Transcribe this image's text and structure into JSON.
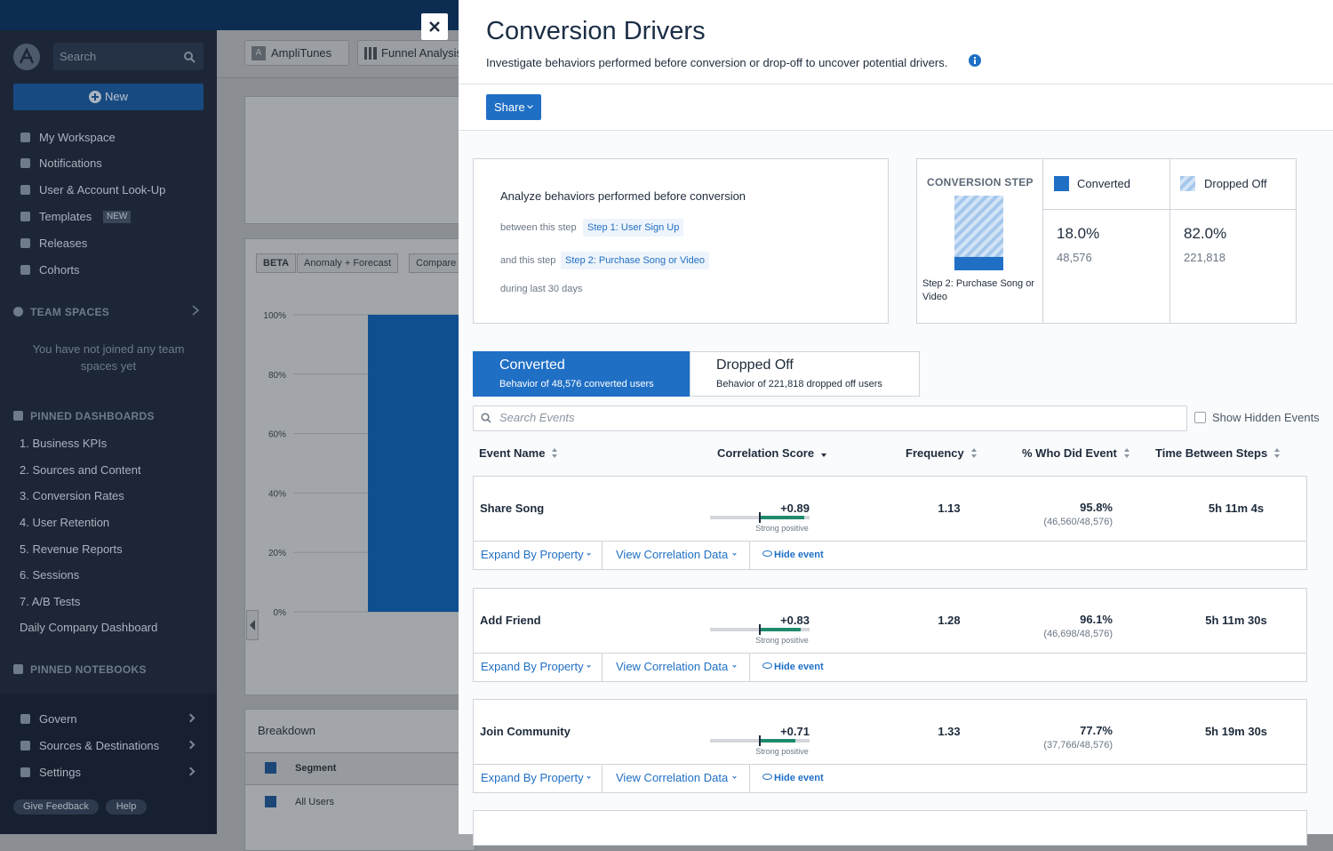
{
  "sidebar": {
    "search_placeholder": "Search",
    "new_button": "New",
    "nav": [
      "My Workspace",
      "Notifications",
      "User & Account Look-Up",
      "Templates",
      "Releases",
      "Cohorts"
    ],
    "templates_badge": "NEW",
    "team_spaces": {
      "heading": "TEAM SPACES",
      "empty_message": "You have not joined any team spaces yet"
    },
    "pinned_dashboards": {
      "heading": "PINNED DASHBOARDS",
      "items": [
        "1. Business KPIs",
        "2. Sources and Content",
        "3. Conversion Rates",
        "4. User Retention",
        "5. Revenue Reports",
        "6. Sessions",
        "7. A/B Tests",
        "Daily Company Dashboard"
      ]
    },
    "pinned_notebooks": {
      "heading": "PINNED NOTEBOOKS"
    },
    "bottom_nav": [
      "Govern",
      "Sources & Destinations",
      "Settings"
    ],
    "give_feedback": "Give Feedback",
    "help": "Help"
  },
  "background": {
    "project": "AmpliTunes",
    "chart_type": "Funnel Analysis",
    "beta": "BETA",
    "anomaly": "Anomaly + Forecast",
    "compare": "Compare",
    "chart": {
      "type": "bar",
      "values": [
        100
      ],
      "ylim": [
        0,
        100
      ],
      "yticks": [
        {
          "value": 0,
          "label": "0%"
        },
        {
          "value": 20,
          "label": "20%"
        },
        {
          "value": 40,
          "label": "40%"
        },
        {
          "value": 60,
          "label": "60%"
        },
        {
          "value": 80,
          "label": "80%"
        },
        {
          "value": 100,
          "label": "100%"
        }
      ]
    },
    "breakdown": {
      "title": "Breakdown",
      "column": "Segment",
      "row": "All Users"
    }
  },
  "panel": {
    "title": "Conversion Drivers",
    "subtitle": "Investigate behaviors performed before conversion or drop-off to uncover potential drivers.",
    "share": "Share",
    "analyze": {
      "heading": "Analyze behaviors performed before conversion",
      "between_label": "between this step",
      "from_step": "Step 1: User Sign Up",
      "and_label": "and this step",
      "to_step": "Step 2: Purchase Song or Video",
      "period": "during last 30 days"
    },
    "conversion": {
      "heading": "CONVERSION STEP",
      "step": "Step 2: Purchase Song or Video",
      "converted": {
        "label": "Converted",
        "rate": {
          "value": 18.0,
          "label": "18.0%"
        },
        "count": "48,576"
      },
      "dropped_off": {
        "label": "Dropped Off",
        "rate": {
          "value": 82.0,
          "label": "82.0%"
        },
        "count": "221,818"
      }
    },
    "tabs": [
      {
        "title": "Converted",
        "subtitle": "Behavior of 48,576 converted users"
      },
      {
        "title": "Dropped Off",
        "subtitle": "Behavior of 221,818 dropped off users"
      }
    ],
    "search_placeholder": "Search Events",
    "show_hidden": "Show Hidden Events",
    "columns": [
      "Event Name",
      "Correlation Score",
      "Frequency",
      "% Who Did Event",
      "Time Between Steps"
    ],
    "row_actions": [
      "Expand By Property",
      "View Correlation Data",
      "Hide event"
    ],
    "rows": [
      {
        "event": "Share Song",
        "score": {
          "value": 0.89,
          "label": "+0.89"
        },
        "strength": "Strong positive",
        "frequency": 1.13,
        "pct": "95.8%",
        "ratio": "(46,560/48,576)",
        "time": "5h 11m 4s"
      },
      {
        "event": "Add Friend",
        "score": {
          "value": 0.83,
          "label": "+0.83"
        },
        "strength": "Strong positive",
        "frequency": 1.28,
        "pct": "96.1%",
        "ratio": "(46,698/48,576)",
        "time": "5h 11m 30s"
      },
      {
        "event": "Join Community",
        "score": {
          "value": 0.71,
          "label": "+0.71"
        },
        "strength": "Strong positive",
        "frequency": 1.33,
        "pct": "77.7%",
        "ratio": "(37,766/48,576)",
        "time": "5h 19m 30s"
      }
    ]
  }
}
